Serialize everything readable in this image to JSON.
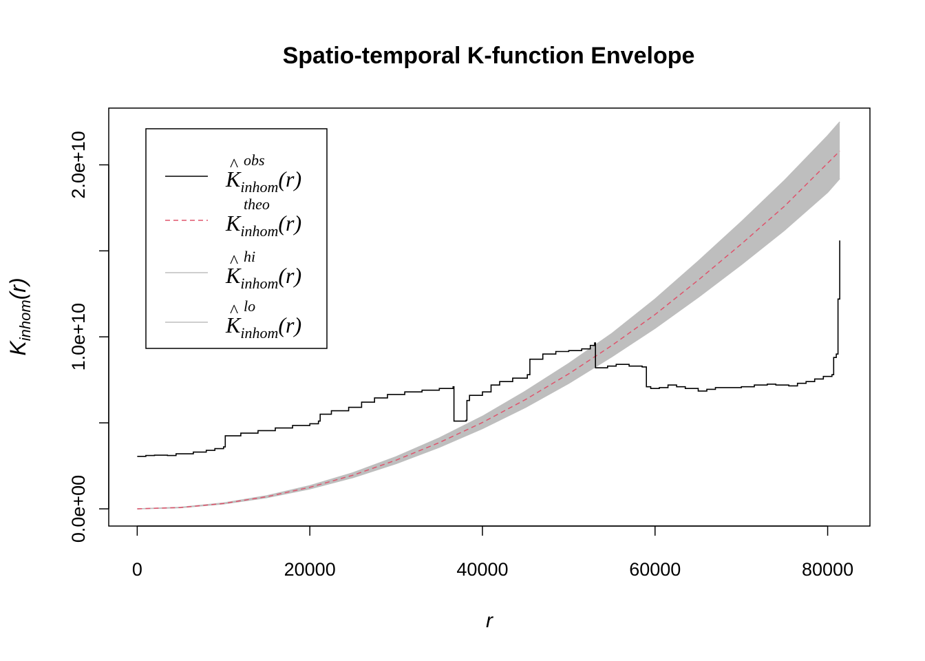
{
  "chart_data": {
    "type": "line",
    "title": "Spatio-temporal K-function Envelope",
    "xlabel": "r",
    "ylabel": {
      "main": "K",
      "sub": "inhom",
      "arg": "(r)"
    },
    "xlim": [
      -3300,
      84900
    ],
    "ylim": [
      -1000000000.0,
      23300000000.0
    ],
    "x_ticks": [
      0,
      20000,
      40000,
      60000,
      80000
    ],
    "x_tick_labels": [
      "0",
      "20000",
      "40000",
      "60000",
      "80000"
    ],
    "y_ticks": [
      0,
      5000000000.0,
      10000000000.0,
      15000000000.0,
      20000000000.0
    ],
    "y_tick_labels": [
      "0.0e+00",
      "",
      "1.0e+10",
      "",
      "2.0e+10"
    ],
    "grid": false,
    "legend": {
      "placement": "top-left",
      "entries": [
        {
          "sup": "obs",
          "sub": "inhom",
          "hat": true,
          "arg": "(r)",
          "color": "#000000",
          "style": "solid"
        },
        {
          "sup": "theo",
          "sub": "inhom",
          "hat": false,
          "arg": "(r)",
          "color": "#DF536B",
          "style": "dashed"
        },
        {
          "sup": "hi",
          "sub": "inhom",
          "hat": true,
          "arg": "(r)",
          "color": "#BEBEBE",
          "style": "solid"
        },
        {
          "sup": "lo",
          "sub": "inhom",
          "hat": true,
          "arg": "(r)",
          "color": "#BEBEBE",
          "style": "solid"
        }
      ]
    },
    "series": [
      {
        "key": "obs",
        "color": "#000000",
        "style": "step",
        "points": [
          [
            0,
            3050000000.0
          ],
          [
            1000,
            3100000000.0
          ],
          [
            2000,
            3120000000.0
          ],
          [
            3500,
            3100000000.0
          ],
          [
            4500,
            3200000000.0
          ],
          [
            6500,
            3300000000.0
          ],
          [
            8000,
            3400000000.0
          ],
          [
            9000,
            3500000000.0
          ],
          [
            10000,
            3600000000.0
          ],
          [
            10200,
            4250000000.0
          ],
          [
            12000,
            4400000000.0
          ],
          [
            14000,
            4550000000.0
          ],
          [
            16000,
            4700000000.0
          ],
          [
            18000,
            4850000000.0
          ],
          [
            20000,
            4950000000.0
          ],
          [
            21000,
            5100000000.0
          ],
          [
            21200,
            5500000000.0
          ],
          [
            22500,
            5700000000.0
          ],
          [
            24500,
            5900000000.0
          ],
          [
            26000,
            6200000000.0
          ],
          [
            27500,
            6450000000.0
          ],
          [
            29000,
            6650000000.0
          ],
          [
            31000,
            6800000000.0
          ],
          [
            33000,
            6900000000.0
          ],
          [
            35000,
            7000000000.0
          ],
          [
            36600,
            7100000000.0
          ],
          [
            36700,
            5100000000.0
          ],
          [
            38100,
            5150000000.0
          ],
          [
            38200,
            6300000000.0
          ],
          [
            38500,
            6600000000.0
          ],
          [
            40000,
            6800000000.0
          ],
          [
            41000,
            7200000000.0
          ],
          [
            42000,
            7400000000.0
          ],
          [
            43500,
            7600000000.0
          ],
          [
            45200,
            7800000000.0
          ],
          [
            45500,
            8700000000.0
          ],
          [
            47000,
            9000000000.0
          ],
          [
            48500,
            9150000000.0
          ],
          [
            50000,
            9200000000.0
          ],
          [
            51500,
            9300000000.0
          ],
          [
            52500,
            9500000000.0
          ],
          [
            53000,
            9650000000.0
          ],
          [
            53100,
            8200000000.0
          ],
          [
            54500,
            8300000000.0
          ],
          [
            55500,
            8400000000.0
          ],
          [
            57000,
            8300000000.0
          ],
          [
            58500,
            8250000000.0
          ],
          [
            59000,
            7100000000.0
          ],
          [
            59500,
            7000000000.0
          ],
          [
            60500,
            7050000000.0
          ],
          [
            61500,
            7200000000.0
          ],
          [
            62500,
            7100000000.0
          ],
          [
            63500,
            7000000000.0
          ],
          [
            65000,
            6850000000.0
          ],
          [
            66000,
            6950000000.0
          ],
          [
            67000,
            7050000000.0
          ],
          [
            68500,
            7050000000.0
          ],
          [
            70000,
            7100000000.0
          ],
          [
            71500,
            7200000000.0
          ],
          [
            73000,
            7250000000.0
          ],
          [
            74000,
            7200000000.0
          ],
          [
            75500,
            7150000000.0
          ],
          [
            76500,
            7300000000.0
          ],
          [
            77500,
            7400000000.0
          ],
          [
            78500,
            7550000000.0
          ],
          [
            79500,
            7700000000.0
          ],
          [
            80500,
            7800000000.0
          ],
          [
            80700,
            8800000000.0
          ],
          [
            81000,
            9000000000.0
          ],
          [
            81200,
            12200000000.0
          ],
          [
            81400,
            15600000000.0
          ]
        ]
      },
      {
        "key": "theo",
        "color": "#DF536B",
        "style": "dashed",
        "points": [
          [
            0,
            0
          ],
          [
            5000,
            78000000.0
          ],
          [
            10000,
            313000000.0
          ],
          [
            15000,
            707000000.0
          ],
          [
            20000,
            1255000000.0
          ],
          [
            25000,
            1960000000.0
          ],
          [
            30000,
            2830000000.0
          ],
          [
            35000,
            3850000000.0
          ],
          [
            40000,
            5020000000.0
          ],
          [
            45000,
            6360000000.0
          ],
          [
            50000,
            7850000000.0
          ],
          [
            55000,
            9500000000.0
          ],
          [
            60000,
            11300000000.0
          ],
          [
            65000,
            13300000000.0
          ],
          [
            70000,
            15400000000.0
          ],
          [
            75000,
            17600000000.0
          ],
          [
            80000,
            20100000000.0
          ],
          [
            81400,
            20800000000.0
          ]
        ]
      },
      {
        "key": "hi",
        "color": "#BEBEBE",
        "style": "solid",
        "points": [
          [
            0,
            0
          ],
          [
            5000,
            90000000.0
          ],
          [
            10000,
            340000000.0
          ],
          [
            15000,
            760000000.0
          ],
          [
            20000,
            1350000000.0
          ],
          [
            25000,
            2100000000.0
          ],
          [
            30000,
            3030000000.0
          ],
          [
            35000,
            4120000000.0
          ],
          [
            40000,
            5380000000.0
          ],
          [
            45000,
            6850000000.0
          ],
          [
            50000,
            8450000000.0
          ],
          [
            55000,
            10200000000.0
          ],
          [
            60000,
            12200000000.0
          ],
          [
            65000,
            14400000000.0
          ],
          [
            70000,
            16700000000.0
          ],
          [
            75000,
            19100000000.0
          ],
          [
            80000,
            21700000000.0
          ],
          [
            81400,
            22500000000.0
          ]
        ]
      },
      {
        "key": "lo",
        "color": "#BEBEBE",
        "style": "solid",
        "points": [
          [
            0,
            0
          ],
          [
            5000,
            65000000.0
          ],
          [
            10000,
            285000000.0
          ],
          [
            15000,
            650000000.0
          ],
          [
            20000,
            1160000000.0
          ],
          [
            25000,
            1820000000.0
          ],
          [
            30000,
            2630000000.0
          ],
          [
            35000,
            3580000000.0
          ],
          [
            40000,
            4670000000.0
          ],
          [
            45000,
            5900000000.0
          ],
          [
            50000,
            7300000000.0
          ],
          [
            55000,
            8850000000.0
          ],
          [
            60000,
            10500000000.0
          ],
          [
            65000,
            12300000000.0
          ],
          [
            70000,
            14200000000.0
          ],
          [
            75000,
            16200000000.0
          ],
          [
            80000,
            18400000000.0
          ],
          [
            81400,
            19200000000.0
          ]
        ]
      }
    ]
  }
}
